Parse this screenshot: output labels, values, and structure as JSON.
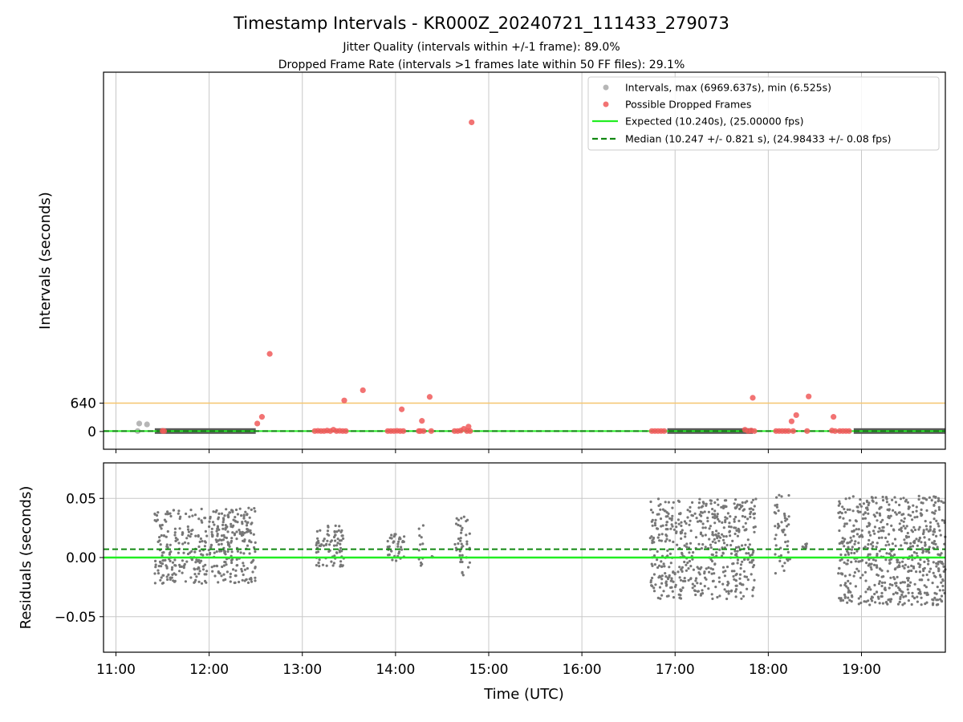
{
  "figure": {
    "title": "Timestamp Intervals - KR000Z_20240721_111433_279073",
    "subtitle_1": "Jitter Quality (intervals within +/-1 frame): 89.0%",
    "subtitle_2": "Dropped Frame Rate (intervals >1 frames late within 50 FF files): 29.1%"
  },
  "chart_data": [
    {
      "type": "scatter",
      "name": "intervals",
      "ylabel": "Intervals (seconds)",
      "xlim": [
        "10:52",
        "19:54"
      ],
      "ylim": [
        -400,
        8100
      ],
      "yticks": [
        0,
        640
      ],
      "ytick_labels": [
        "0",
        "640"
      ],
      "grid": "vertical",
      "legend_position": "top-right",
      "threshold_line": {
        "y": 640,
        "color": "#f5c66e"
      },
      "legend": [
        {
          "label": "Intervals, max (6969.637s), min (6.525s)",
          "marker": "circle",
          "color": "#9e9e9e"
        },
        {
          "label": "Possible Dropped Frames",
          "marker": "circle",
          "color": "#f05a5a"
        },
        {
          "label": "Expected (10.240s), (25.00000 fps)",
          "line": "solid",
          "color": "#22ee22"
        },
        {
          "label": "Median (10.247 +/- 0.821 s), (24.98433 +/- 0.08 fps)",
          "line": "dashed",
          "color": "#118811"
        }
      ],
      "interval_bands": [
        [
          "11:25",
          "12:30"
        ],
        [
          "16:55",
          "17:50"
        ],
        [
          "18:55",
          "19:54"
        ]
      ],
      "interval_outliers": [
        {
          "t": "11:15",
          "y": 180
        },
        {
          "t": "11:20",
          "y": 160
        },
        {
          "t": "11:14",
          "y": 10
        }
      ],
      "dropped_frames": [
        {
          "t": "11:30",
          "y": 15
        },
        {
          "t": "11:31",
          "y": 10
        },
        {
          "t": "12:31",
          "y": 180
        },
        {
          "t": "12:34",
          "y": 330
        },
        {
          "t": "12:39",
          "y": 1750
        },
        {
          "t": "13:08",
          "y": 10
        },
        {
          "t": "13:10",
          "y": 15
        },
        {
          "t": "13:12",
          "y": 10
        },
        {
          "t": "13:14",
          "y": 10
        },
        {
          "t": "13:16",
          "y": 20
        },
        {
          "t": "13:18",
          "y": 10
        },
        {
          "t": "13:20",
          "y": 40
        },
        {
          "t": "13:22",
          "y": 10
        },
        {
          "t": "13:24",
          "y": 15
        },
        {
          "t": "13:26",
          "y": 10
        },
        {
          "t": "13:27",
          "y": 700
        },
        {
          "t": "13:28",
          "y": 10
        },
        {
          "t": "13:39",
          "y": 930
        },
        {
          "t": "13:55",
          "y": 10
        },
        {
          "t": "13:57",
          "y": 10
        },
        {
          "t": "13:59",
          "y": 10
        },
        {
          "t": "14:01",
          "y": 15
        },
        {
          "t": "14:03",
          "y": 10
        },
        {
          "t": "14:04",
          "y": 500
        },
        {
          "t": "14:05",
          "y": 10
        },
        {
          "t": "14:15",
          "y": 10
        },
        {
          "t": "14:16",
          "y": 10
        },
        {
          "t": "14:17",
          "y": 240
        },
        {
          "t": "14:18",
          "y": 10
        },
        {
          "t": "14:22",
          "y": 780
        },
        {
          "t": "14:23",
          "y": 10
        },
        {
          "t": "14:38",
          "y": 10
        },
        {
          "t": "14:40",
          "y": 10
        },
        {
          "t": "14:42",
          "y": 20
        },
        {
          "t": "14:44",
          "y": 60
        },
        {
          "t": "14:46",
          "y": 10
        },
        {
          "t": "14:47",
          "y": 110
        },
        {
          "t": "14:48",
          "y": 10
        },
        {
          "t": "14:49",
          "y": 6970
        },
        {
          "t": "16:45",
          "y": 10
        },
        {
          "t": "16:47",
          "y": 10
        },
        {
          "t": "16:49",
          "y": 10
        },
        {
          "t": "16:51",
          "y": 10
        },
        {
          "t": "16:53",
          "y": 10
        },
        {
          "t": "17:45",
          "y": 40
        },
        {
          "t": "17:47",
          "y": 10
        },
        {
          "t": "17:49",
          "y": 20
        },
        {
          "t": "17:50",
          "y": 760
        },
        {
          "t": "17:51",
          "y": 10
        },
        {
          "t": "18:05",
          "y": 10
        },
        {
          "t": "18:07",
          "y": 10
        },
        {
          "t": "18:09",
          "y": 10
        },
        {
          "t": "18:11",
          "y": 10
        },
        {
          "t": "18:13",
          "y": 10
        },
        {
          "t": "18:15",
          "y": 230
        },
        {
          "t": "18:16",
          "y": 10
        },
        {
          "t": "18:18",
          "y": 370
        },
        {
          "t": "18:25",
          "y": 10
        },
        {
          "t": "18:26",
          "y": 790
        },
        {
          "t": "18:41",
          "y": 20
        },
        {
          "t": "18:42",
          "y": 330
        },
        {
          "t": "18:43",
          "y": 10
        },
        {
          "t": "18:46",
          "y": 10
        },
        {
          "t": "18:48",
          "y": 10
        },
        {
          "t": "18:50",
          "y": 10
        },
        {
          "t": "18:52",
          "y": 10
        }
      ],
      "expected": 10.24,
      "median": 10.247
    },
    {
      "type": "scatter",
      "name": "residuals",
      "xlabel": "Time (UTC)",
      "ylabel": "Residuals (seconds)",
      "xlim": [
        "10:52",
        "19:54"
      ],
      "ylim": [
        -0.08,
        0.08
      ],
      "yticks": [
        -0.05,
        0.0,
        0.05
      ],
      "ytick_labels": [
        "−0.05",
        "0.00",
        "0.05"
      ],
      "xticks": [
        "11:00",
        "12:00",
        "13:00",
        "14:00",
        "15:00",
        "16:00",
        "17:00",
        "18:00",
        "19:00"
      ],
      "grid": "both",
      "expected_residual": 0.0,
      "median_residual": 0.007,
      "point_color": "#777777",
      "clusters": [
        {
          "start": "11:25",
          "end": "12:30",
          "lo": -0.022,
          "hi": 0.042,
          "n": 420
        },
        {
          "start": "13:09",
          "end": "13:27",
          "lo": -0.008,
          "hi": 0.028,
          "n": 80
        },
        {
          "start": "13:55",
          "end": "14:06",
          "lo": -0.003,
          "hi": 0.02,
          "n": 40
        },
        {
          "start": "14:15",
          "end": "14:18",
          "lo": -0.008,
          "hi": 0.028,
          "n": 12
        },
        {
          "start": "14:22",
          "end": "14:24",
          "lo": 0.0,
          "hi": 0.002,
          "n": 4
        },
        {
          "start": "14:38",
          "end": "14:48",
          "lo": -0.015,
          "hi": 0.038,
          "n": 40
        },
        {
          "start": "16:44",
          "end": "17:52",
          "lo": -0.035,
          "hi": 0.05,
          "n": 520
        },
        {
          "start": "18:04",
          "end": "18:14",
          "lo": -0.015,
          "hi": 0.053,
          "n": 50
        },
        {
          "start": "18:22",
          "end": "18:25",
          "lo": 0.005,
          "hi": 0.012,
          "n": 6
        },
        {
          "start": "18:45",
          "end": "19:54",
          "lo": -0.04,
          "hi": 0.052,
          "n": 620
        }
      ]
    }
  ]
}
